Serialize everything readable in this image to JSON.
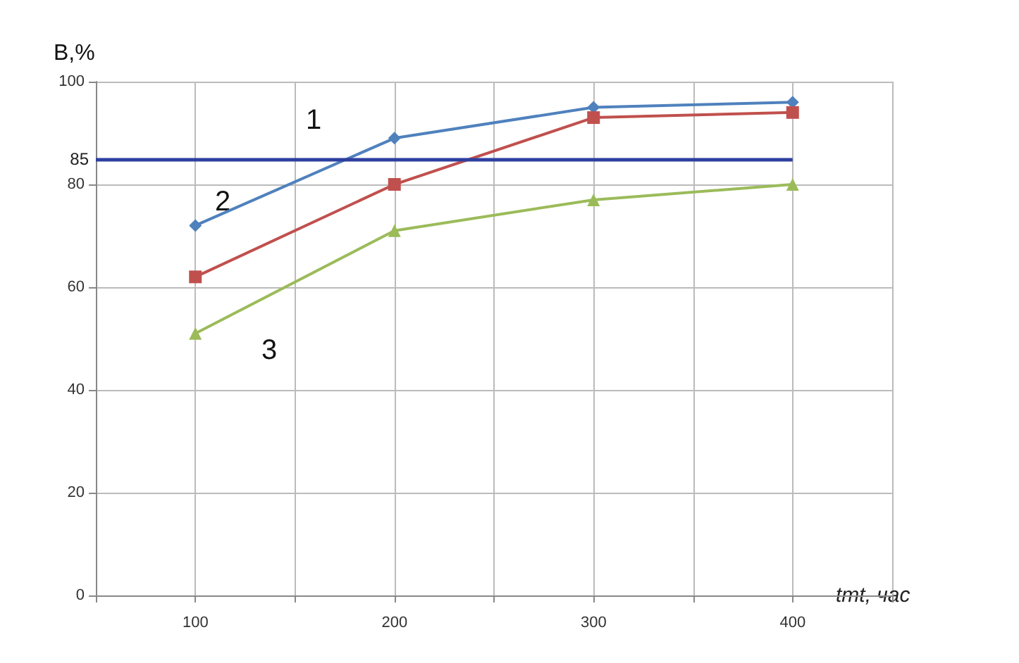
{
  "chart_data": {
    "type": "line",
    "ylabel": "B,%",
    "xlabel": "tmt, час",
    "x": [
      100,
      200,
      300,
      400
    ],
    "series": [
      {
        "values": [
          72,
          89,
          95,
          96
        ],
        "color": "#4f81bd",
        "marker": "diamond"
      },
      {
        "values": [
          62,
          80,
          93,
          94
        ],
        "color": "#c0504d",
        "marker": "square"
      },
      {
        "values": [
          51,
          71,
          77,
          80
        ],
        "color": "#9bbb59",
        "marker": "triangle"
      }
    ],
    "xlim": [
      50,
      450
    ],
    "xticks": [
      {
        "value": 50,
        "label": null
      },
      100,
      {
        "value": 150,
        "label": null
      },
      200,
      {
        "value": 250,
        "label": null
      },
      300,
      {
        "value": 350,
        "label": null
      },
      400,
      {
        "value": 450,
        "label": null
      }
    ],
    "ylim": [
      0,
      100
    ],
    "yticks": [
      0,
      20,
      40,
      60,
      80,
      100
    ],
    "ref_lines": [
      {
        "axis": "y",
        "value": 85,
        "label": "85",
        "color": "#2e3f9e"
      }
    ],
    "annotations": [
      "1",
      "2",
      "3"
    ],
    "grid": true
  }
}
